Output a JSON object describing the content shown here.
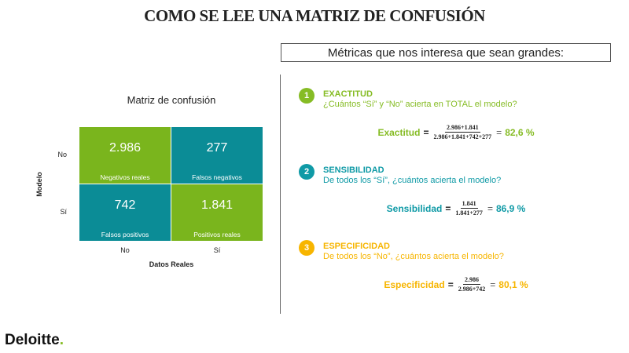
{
  "title": "COMO SE LEE UNA MATRIZ DE CONFUSIÓN",
  "matrix": {
    "title": "Matriz de confusión",
    "y_label": "Modelo",
    "x_label": "Datos Reales",
    "row_labels": [
      "No",
      "Sí"
    ],
    "col_labels": [
      "No",
      "Sí"
    ],
    "cells": [
      [
        {
          "value": "2.986",
          "label": "Negativos reales",
          "color": "#7ab51d"
        },
        {
          "value": "277",
          "label": "Falsos negativos",
          "color": "#0b8c96"
        }
      ],
      [
        {
          "value": "742",
          "label": "Falsos positivos",
          "color": "#0b8c96"
        },
        {
          "value": "1.841",
          "label": "Positivos reales",
          "color": "#7ab51d"
        }
      ]
    ]
  },
  "metrics_header": "Métricas que nos interesa que sean grandes:",
  "metrics": [
    {
      "number": "1",
      "name": "EXACTITUD",
      "question": "¿Cuántos “Sí” y “No” acierta en TOTAL  el modelo?",
      "color": "#86bc25",
      "formula": {
        "label": "Exactitud",
        "eq": "=",
        "numerator": "2.986+1.841",
        "denominator": "2.986+1.841+742+277",
        "eq2": "=",
        "result": "82,6 %"
      }
    },
    {
      "number": "2",
      "name": "SENSIBILIDAD",
      "question": "De todos los “Sí”, ¿cuántos acierta el modelo?",
      "color": "#0f9aa6",
      "formula": {
        "label": "Sensibilidad",
        "eq": "=",
        "numerator": "1.841",
        "denominator": "1.841+277",
        "eq2": "=",
        "result": "86,9 %"
      }
    },
    {
      "number": "3",
      "name": "ESPECIFICIDAD",
      "question": "De todos los “No”, ¿cuántos acierta el modelo?",
      "color": "#f7b500",
      "formula": {
        "label": "Especificidad",
        "eq": "=",
        "numerator": "2.986",
        "denominator": "2.986+742",
        "eq2": "=",
        "result": "80,1 %"
      }
    }
  ],
  "footer": {
    "brand": "Deloitte",
    "dot": "."
  }
}
